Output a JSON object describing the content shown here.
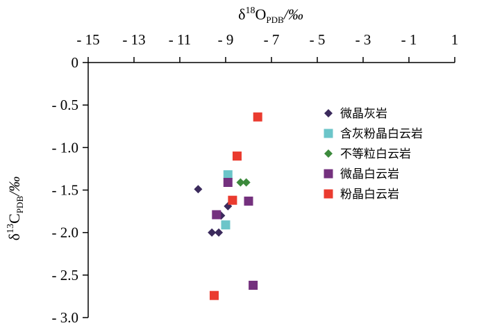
{
  "chart_data": {
    "type": "scatter",
    "x_axis": {
      "label_main": "δ",
      "label_sup": "18",
      "label_mid": "O",
      "label_sub": "PDB",
      "label_unit": "/‰",
      "position": "top",
      "range": [
        -15,
        1
      ],
      "ticks": [
        -15,
        -13,
        -11,
        -9,
        -7,
        -5,
        -3,
        -1,
        1
      ],
      "tick_labels": [
        "- 15",
        "- 13",
        "- 11",
        "- 9",
        "- 7",
        "- 5",
        "- 3",
        "- 1",
        "1"
      ]
    },
    "y_axis": {
      "label_main": "δ",
      "label_sup": "13",
      "label_mid": "C",
      "label_sub": "PDB",
      "label_unit": "/‰",
      "range": [
        -3.0,
        0
      ],
      "ticks": [
        0,
        -0.5,
        -1.0,
        -1.5,
        -2.0,
        -2.5,
        -3.0
      ],
      "tick_labels": [
        "0",
        "- 0.5",
        "- 1.0",
        "- 1.5",
        "- 2.0",
        "- 2.5",
        "- 3.0"
      ]
    },
    "grid": false,
    "legend_position": "right",
    "series": [
      {
        "name": "微晶灰岩",
        "marker": "diamond",
        "color": "#3b2a5c",
        "points": [
          [
            -10.2,
            -1.49
          ],
          [
            -9.6,
            -2.0
          ],
          [
            -9.3,
            -2.0
          ],
          [
            -9.2,
            -1.8
          ],
          [
            -8.9,
            -1.69
          ]
        ]
      },
      {
        "name": "含灰粉晶白云岩",
        "marker": "square",
        "color": "#6cc5c9",
        "points": [
          [
            -8.9,
            -1.32
          ],
          [
            -9.0,
            -1.91
          ]
        ]
      },
      {
        "name": "不等粒白云岩",
        "marker": "diamond",
        "color": "#3c8a3c",
        "points": [
          [
            -8.35,
            -1.41
          ],
          [
            -8.1,
            -1.41
          ]
        ]
      },
      {
        "name": "微晶白云岩",
        "marker": "square",
        "color": "#74317e",
        "points": [
          [
            -8.9,
            -1.41
          ],
          [
            -9.4,
            -1.79
          ],
          [
            -8.0,
            -1.63
          ],
          [
            -7.8,
            -2.62
          ]
        ]
      },
      {
        "name": "粉晶白云岩",
        "marker": "square",
        "color": "#ea3b2f",
        "points": [
          [
            -7.6,
            -0.64
          ],
          [
            -8.5,
            -1.1
          ],
          [
            -8.7,
            -1.62
          ],
          [
            -9.5,
            -2.74
          ]
        ]
      }
    ]
  }
}
